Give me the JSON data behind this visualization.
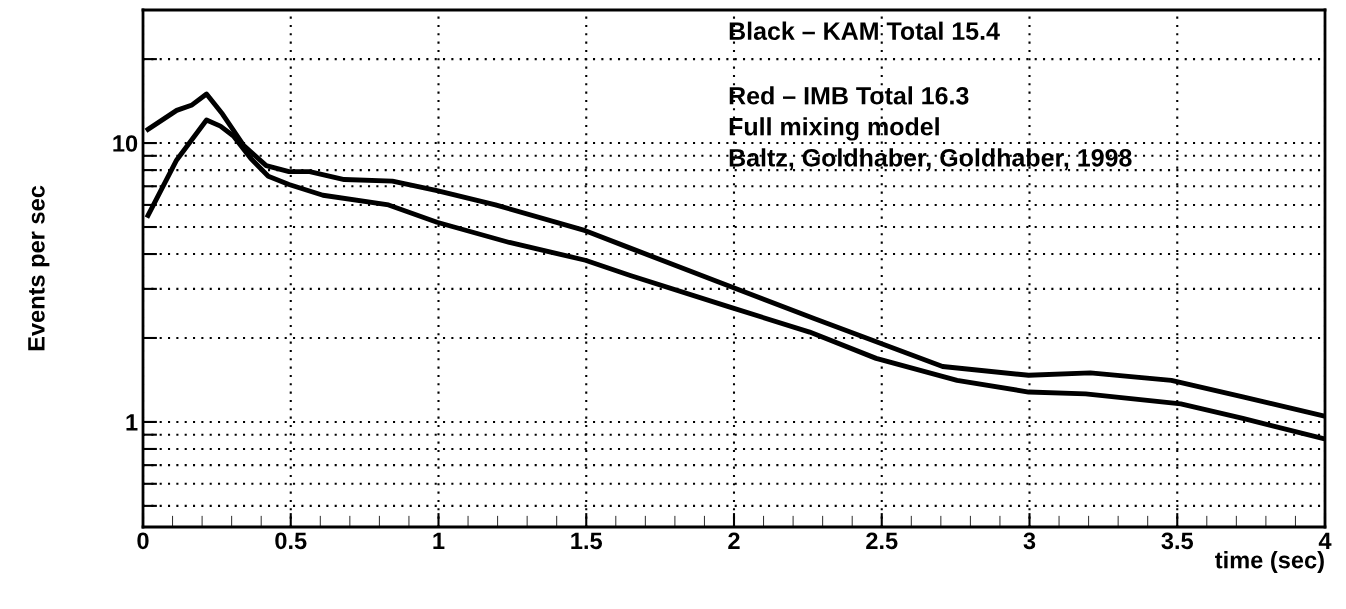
{
  "chart_data": {
    "type": "line",
    "xlabel": "time (sec)",
    "ylabel": "Events per sec",
    "annotations": [
      "Black – KAM Total 15.4",
      "Red – IMB Total 16.3",
      "Full mixing model",
      "Baltz, Goldhaber, Goldhaber, 1998"
    ],
    "log": "y",
    "grid": true,
    "legend": false,
    "marker": "none",
    "line_style": "solid",
    "xlim": [
      0,
      4
    ],
    "xticks": [
      0,
      0.5,
      1,
      1.5,
      2,
      2.5,
      3,
      3.5,
      4
    ],
    "ylim": [
      0.42,
      30
    ],
    "yticks": [
      {
        "value": 0.5,
        "label": null
      },
      {
        "value": 0.6,
        "label": null
      },
      {
        "value": 0.7,
        "label": null
      },
      {
        "value": 0.8,
        "label": null
      },
      {
        "value": 0.9,
        "label": null
      },
      1,
      {
        "value": 2,
        "label": null
      },
      {
        "value": 3,
        "label": null
      },
      {
        "value": 4,
        "label": null
      },
      {
        "value": 5,
        "label": null
      },
      {
        "value": 6,
        "label": null
      },
      {
        "value": 7,
        "label": null
      },
      {
        "value": 8,
        "label": null
      },
      {
        "value": 9,
        "label": null
      },
      10,
      {
        "value": 20,
        "label": null
      }
    ],
    "series": [
      {
        "color": "#000000",
        "x": [
          0.017,
          0.114,
          0.166,
          0.215,
          0.269,
          0.341,
          0.417,
          0.494,
          0.564,
          0.681,
          0.844,
          0.995,
          1.193,
          1.497,
          1.649,
          1.981,
          2.271,
          2.706,
          2.997,
          3.206,
          3.48,
          3.722,
          3.996
        ],
        "values": [
          11.2,
          13.1,
          13.7,
          15.0,
          12.7,
          9.8,
          8.3,
          7.9,
          7.9,
          7.4,
          7.3,
          6.75,
          6.0,
          4.85,
          4.2,
          3.08,
          2.35,
          1.58,
          1.47,
          1.5,
          1.41,
          1.23,
          1.05
        ]
      },
      {
        "color": "#000000",
        "x": [
          0.017,
          0.114,
          0.215,
          0.262,
          0.306,
          0.365,
          0.424,
          0.494,
          0.609,
          0.831,
          0.995,
          1.24,
          1.497,
          1.649,
          1.981,
          2.256,
          2.481,
          2.755,
          2.997,
          3.19,
          3.512,
          3.722,
          3.996
        ],
        "values": [
          5.5,
          8.7,
          12.1,
          11.5,
          10.6,
          8.8,
          7.6,
          7.1,
          6.5,
          6.0,
          5.2,
          4.4,
          3.8,
          3.35,
          2.59,
          2.1,
          1.69,
          1.41,
          1.28,
          1.26,
          1.16,
          1.03,
          0.87
        ]
      }
    ]
  }
}
